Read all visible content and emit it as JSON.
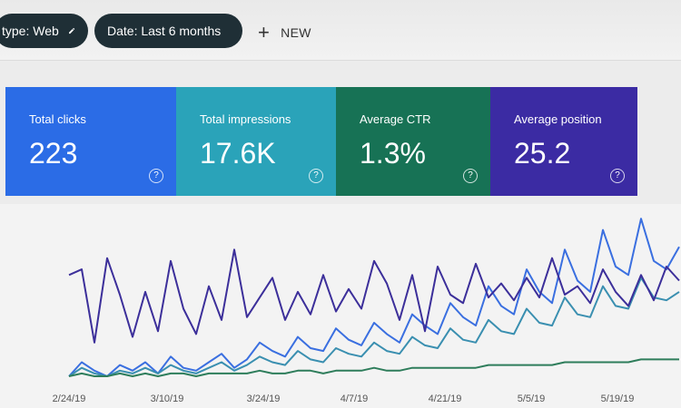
{
  "filters": {
    "type_chip": "type: Web",
    "date_chip": "Date: Last 6 months",
    "new_label": "NEW"
  },
  "cards": [
    {
      "title": "Total clicks",
      "value": "223",
      "color": "#2b6ce6"
    },
    {
      "title": "Total impressions",
      "value": "17.6K",
      "color": "#2aa3b9"
    },
    {
      "title": "Average CTR",
      "value": "1.3%",
      "color": "#177255"
    },
    {
      "title": "Average position",
      "value": "25.2",
      "color": "#3b2ba3"
    }
  ],
  "help_icon": "help-circle-icon",
  "chart_data": {
    "type": "line",
    "x_tick_labels": [
      "2/24/19",
      "3/10/19",
      "3/24/19",
      "4/7/19",
      "4/21/19",
      "5/5/19",
      "5/19/19"
    ],
    "grid": false,
    "series": [
      {
        "metric": "clicks",
        "color": "#3a6fe0",
        "values": [
          0,
          0.5,
          0.2,
          0,
          0.4,
          0.2,
          0.5,
          0.1,
          0.7,
          0.3,
          0.2,
          0.5,
          0.8,
          0.3,
          0.6,
          1.2,
          0.9,
          0.7,
          1.4,
          1.0,
          0.9,
          1.7,
          1.3,
          1.1,
          1.9,
          1.5,
          1.2,
          2.2,
          1.8,
          1.5,
          2.6,
          2.1,
          1.8,
          3.2,
          2.5,
          2.2,
          3.8,
          3.0,
          2.6,
          4.5,
          3.4,
          3.0,
          5.2,
          3.9,
          3.6,
          5.6,
          4.1,
          3.8,
          4.6
        ]
      },
      {
        "metric": "impressions",
        "color": "#3a8fb0",
        "values": [
          0,
          0.3,
          0.1,
          0,
          0.2,
          0.1,
          0.3,
          0.1,
          0.4,
          0.2,
          0.1,
          0.3,
          0.5,
          0.2,
          0.4,
          0.7,
          0.5,
          0.4,
          0.9,
          0.6,
          0.5,
          1.0,
          0.8,
          0.7,
          1.2,
          0.9,
          0.8,
          1.4,
          1.1,
          1.0,
          1.7,
          1.3,
          1.2,
          2.0,
          1.6,
          1.5,
          2.4,
          1.9,
          1.8,
          2.8,
          2.2,
          2.1,
          3.2,
          2.5,
          2.4,
          3.5,
          2.8,
          2.7,
          3.0
        ]
      },
      {
        "metric": "ctr",
        "color": "#2e7d5b",
        "values": [
          0,
          0.1,
          0,
          0,
          0.1,
          0,
          0.1,
          0,
          0.1,
          0.1,
          0,
          0.1,
          0.1,
          0.1,
          0.1,
          0.2,
          0.1,
          0.1,
          0.2,
          0.2,
          0.1,
          0.2,
          0.2,
          0.2,
          0.3,
          0.2,
          0.2,
          0.3,
          0.3,
          0.3,
          0.3,
          0.3,
          0.3,
          0.4,
          0.4,
          0.4,
          0.4,
          0.4,
          0.4,
          0.5,
          0.5,
          0.5,
          0.5,
          0.5,
          0.5,
          0.6,
          0.6,
          0.6,
          0.6
        ]
      },
      {
        "metric": "position",
        "color": "#3c2f9a",
        "values": [
          3.6,
          3.8,
          1.2,
          4.2,
          2.9,
          1.4,
          3.0,
          1.6,
          4.1,
          2.4,
          1.5,
          3.2,
          2.0,
          4.5,
          2.1,
          2.8,
          3.5,
          2.0,
          3.0,
          2.2,
          3.6,
          2.3,
          3.1,
          2.4,
          4.1,
          3.3,
          2.0,
          3.6,
          1.6,
          3.9,
          2.9,
          2.6,
          4.0,
          2.8,
          3.3,
          2.7,
          3.5,
          2.8,
          4.2,
          2.9,
          3.2,
          2.6,
          3.8,
          3.0,
          2.5,
          3.6,
          2.7,
          3.9,
          3.4
        ]
      }
    ]
  }
}
